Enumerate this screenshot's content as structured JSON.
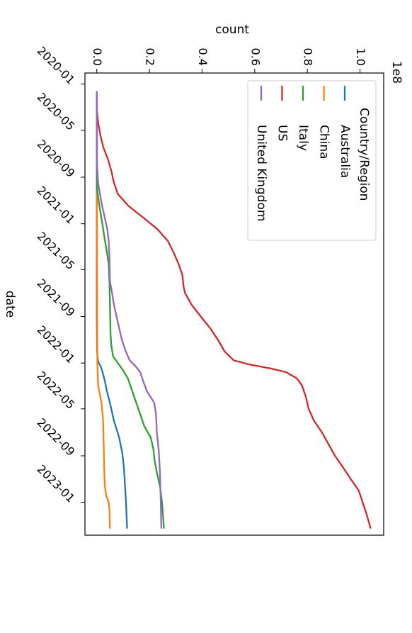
{
  "chart_data": {
    "type": "line",
    "title": "",
    "xlabel": "date",
    "ylabel": "count",
    "y_multiplier_label": "1e8",
    "y_scale": 100000000,
    "ylim": [
      -0.045,
      1.09
    ],
    "xlim": [
      "2019-12-03",
      "2023-03-28"
    ],
    "y_ticks": [
      0.0,
      0.2,
      0.4,
      0.6,
      0.8,
      1.0
    ],
    "y_tick_labels": [
      "0.0",
      "0.2",
      "0.4",
      "0.6",
      "0.8",
      "1.0"
    ],
    "x_ticks": [
      "2020-01-01",
      "2020-05-01",
      "2020-09-01",
      "2021-01-01",
      "2021-05-01",
      "2021-09-01",
      "2022-01-01",
      "2022-05-01",
      "2022-09-01",
      "2023-01-01"
    ],
    "x_tick_labels": [
      "2020-01",
      "2020-05",
      "2020-09",
      "2021-01",
      "2021-05",
      "2021-09",
      "2022-01",
      "2022-05",
      "2022-09",
      "2023-01"
    ],
    "legend": {
      "title": "Country/Region",
      "placement": "top-right (rendered rotated)"
    },
    "orientation": "figure rotated 90 degrees clockwise",
    "series": [
      {
        "name": "Australia",
        "color": "#1f77b4",
        "points": [
          [
            "2020-01-22",
            0.0
          ],
          [
            "2021-01-01",
            0.0
          ],
          [
            "2021-09-01",
            0.0
          ],
          [
            "2021-12-01",
            0.001
          ],
          [
            "2021-12-28",
            0.005
          ],
          [
            "2022-01-10",
            0.015
          ],
          [
            "2022-01-25",
            0.022
          ],
          [
            "2022-02-15",
            0.03
          ],
          [
            "2022-03-15",
            0.038
          ],
          [
            "2022-04-15",
            0.05
          ],
          [
            "2022-06-01",
            0.065
          ],
          [
            "2022-07-15",
            0.085
          ],
          [
            "2022-08-25",
            0.097
          ],
          [
            "2022-10-01",
            0.103
          ],
          [
            "2022-11-15",
            0.107
          ],
          [
            "2023-01-01",
            0.111
          ],
          [
            "2023-03-09",
            0.115
          ]
        ]
      },
      {
        "name": "China",
        "color": "#ff7f0e",
        "points": [
          [
            "2020-01-22",
            0.0
          ],
          [
            "2021-01-01",
            0.001
          ],
          [
            "2022-01-01",
            0.002
          ],
          [
            "2022-03-01",
            0.005
          ],
          [
            "2022-04-15",
            0.018
          ],
          [
            "2022-06-01",
            0.024
          ],
          [
            "2022-09-01",
            0.027
          ],
          [
            "2022-11-15",
            0.03
          ],
          [
            "2022-12-15",
            0.036
          ],
          [
            "2023-01-01",
            0.045
          ],
          [
            "2023-01-20",
            0.048
          ],
          [
            "2023-03-09",
            0.05
          ]
        ]
      },
      {
        "name": "Italy",
        "color": "#2ca02c",
        "points": [
          [
            "2020-01-22",
            0.0
          ],
          [
            "2020-10-01",
            0.001
          ],
          [
            "2020-11-15",
            0.01
          ],
          [
            "2020-12-31",
            0.021
          ],
          [
            "2021-02-01",
            0.028
          ],
          [
            "2021-03-15",
            0.038
          ],
          [
            "2021-04-15",
            0.045
          ],
          [
            "2021-06-01",
            0.048
          ],
          [
            "2021-08-01",
            0.05
          ],
          [
            "2021-10-15",
            0.052
          ],
          [
            "2021-11-15",
            0.055
          ],
          [
            "2021-12-15",
            0.062
          ],
          [
            "2022-01-01",
            0.08
          ],
          [
            "2022-01-20",
            0.1
          ],
          [
            "2022-02-10",
            0.118
          ],
          [
            "2022-03-10",
            0.132
          ],
          [
            "2022-04-15",
            0.15
          ],
          [
            "2022-05-15",
            0.165
          ],
          [
            "2022-06-15",
            0.18
          ],
          [
            "2022-07-15",
            0.205
          ],
          [
            "2022-08-15",
            0.215
          ],
          [
            "2022-09-15",
            0.22
          ],
          [
            "2022-10-20",
            0.23
          ],
          [
            "2022-11-20",
            0.24
          ],
          [
            "2023-01-01",
            0.248
          ],
          [
            "2023-03-09",
            0.255
          ]
        ]
      },
      {
        "name": "US",
        "color": "#d62728",
        "points": [
          [
            "2020-01-22",
            0.0
          ],
          [
            "2020-03-15",
            0.001
          ],
          [
            "2020-04-15",
            0.006
          ],
          [
            "2020-05-15",
            0.014
          ],
          [
            "2020-06-15",
            0.025
          ],
          [
            "2020-07-15",
            0.042
          ],
          [
            "2020-08-15",
            0.055
          ],
          [
            "2020-09-15",
            0.065
          ],
          [
            "2020-10-15",
            0.08
          ],
          [
            "2020-11-15",
            0.12
          ],
          [
            "2020-12-15",
            0.175
          ],
          [
            "2021-01-15",
            0.23
          ],
          [
            "2021-02-15",
            0.27
          ],
          [
            "2021-03-15",
            0.29
          ],
          [
            "2021-04-15",
            0.31
          ],
          [
            "2021-05-15",
            0.325
          ],
          [
            "2021-06-15",
            0.33
          ],
          [
            "2021-07-01",
            0.335
          ],
          [
            "2021-08-01",
            0.36
          ],
          [
            "2021-09-01",
            0.395
          ],
          [
            "2021-10-01",
            0.43
          ],
          [
            "2021-11-01",
            0.46
          ],
          [
            "2021-12-01",
            0.485
          ],
          [
            "2021-12-25",
            0.52
          ],
          [
            "2022-01-05",
            0.58
          ],
          [
            "2022-01-15",
            0.66
          ],
          [
            "2022-01-25",
            0.72
          ],
          [
            "2022-02-10",
            0.76
          ],
          [
            "2022-03-01",
            0.78
          ],
          [
            "2022-04-01",
            0.795
          ],
          [
            "2022-05-01",
            0.805
          ],
          [
            "2022-06-01",
            0.825
          ],
          [
            "2022-07-01",
            0.855
          ],
          [
            "2022-08-01",
            0.88
          ],
          [
            "2022-09-01",
            0.905
          ],
          [
            "2022-10-01",
            0.935
          ],
          [
            "2022-11-01",
            0.965
          ],
          [
            "2022-12-01",
            0.995
          ],
          [
            "2023-01-01",
            1.01
          ],
          [
            "2023-02-01",
            1.025
          ],
          [
            "2023-03-09",
            1.04
          ]
        ]
      },
      {
        "name": "United Kingdom",
        "color": "#9467bd",
        "points": [
          [
            "2020-01-22",
            0.0
          ],
          [
            "2020-08-01",
            0.001
          ],
          [
            "2020-09-15",
            0.005
          ],
          [
            "2020-10-15",
            0.012
          ],
          [
            "2020-11-15",
            0.02
          ],
          [
            "2020-12-15",
            0.03
          ],
          [
            "2021-01-15",
            0.04
          ],
          [
            "2021-02-15",
            0.045
          ],
          [
            "2021-04-01",
            0.048
          ],
          [
            "2021-06-01",
            0.05
          ],
          [
            "2021-07-01",
            0.058
          ],
          [
            "2021-08-01",
            0.065
          ],
          [
            "2021-09-01",
            0.075
          ],
          [
            "2021-10-01",
            0.085
          ],
          [
            "2021-11-01",
            0.095
          ],
          [
            "2021-12-01",
            0.11
          ],
          [
            "2021-12-25",
            0.125
          ],
          [
            "2022-01-10",
            0.148
          ],
          [
            "2022-01-25",
            0.165
          ],
          [
            "2022-02-15",
            0.175
          ],
          [
            "2022-03-15",
            0.19
          ],
          [
            "2022-04-15",
            0.218
          ],
          [
            "2022-05-15",
            0.225
          ],
          [
            "2022-07-01",
            0.228
          ],
          [
            "2022-08-15",
            0.235
          ],
          [
            "2022-10-15",
            0.24
          ],
          [
            "2023-01-01",
            0.243
          ],
          [
            "2023-03-09",
            0.245
          ]
        ]
      }
    ]
  }
}
